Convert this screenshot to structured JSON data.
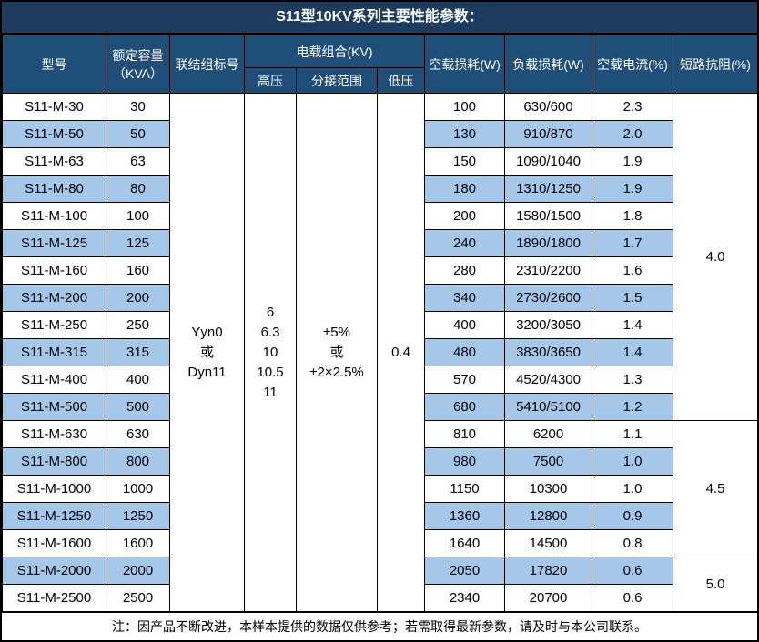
{
  "title": "S11型10KV系列主要性能参数：",
  "colors": {
    "title_bg": "#1E3C60",
    "header_bg": "#1F4E79",
    "row_alt_bg": "#A5C8EA",
    "border": "#000000"
  },
  "table": {
    "headers": {
      "model": "型号",
      "capacity_line1": "额定容量",
      "capacity_line2": "（KVA）",
      "connection": "联结组标号",
      "voltage_group": "电载组合(KV)",
      "high_voltage": "高压",
      "tap_range": "分接范围",
      "low_voltage": "低压",
      "no_load_loss": "空载损耗(W)",
      "load_loss": "负载损耗(W)",
      "no_load_current": "空载电流(%)",
      "impedance": "短路抗阻(%)"
    },
    "merged": {
      "connection": [
        "Yyn0",
        "或",
        "Dyn11"
      ],
      "high_voltage": [
        "6",
        "6.3",
        "10",
        "10.5",
        "11"
      ],
      "tap_range": [
        "±5%",
        "或",
        "±2×2.5%"
      ],
      "low_voltage": "0.4"
    },
    "rows": [
      {
        "model": "S11-M-30",
        "capacity": "30",
        "no_load_loss": "100",
        "load_loss": "630/600",
        "no_load_current": "2.3"
      },
      {
        "model": "S11-M-50",
        "capacity": "50",
        "no_load_loss": "130",
        "load_loss": "910/870",
        "no_load_current": "2.0"
      },
      {
        "model": "S11-M-63",
        "capacity": "63",
        "no_load_loss": "150",
        "load_loss": "1090/1040",
        "no_load_current": "1.9"
      },
      {
        "model": "S11-M-80",
        "capacity": "80",
        "no_load_loss": "180",
        "load_loss": "1310/1250",
        "no_load_current": "1.9"
      },
      {
        "model": "S11-M-100",
        "capacity": "100",
        "no_load_loss": "200",
        "load_loss": "1580/1500",
        "no_load_current": "1.8"
      },
      {
        "model": "S11-M-125",
        "capacity": "125",
        "no_load_loss": "240",
        "load_loss": "1890/1800",
        "no_load_current": "1.7"
      },
      {
        "model": "S11-M-160",
        "capacity": "160",
        "no_load_loss": "280",
        "load_loss": "2310/2200",
        "no_load_current": "1.6"
      },
      {
        "model": "S11-M-200",
        "capacity": "200",
        "no_load_loss": "340",
        "load_loss": "2730/2600",
        "no_load_current": "1.5"
      },
      {
        "model": "S11-M-250",
        "capacity": "250",
        "no_load_loss": "400",
        "load_loss": "3200/3050",
        "no_load_current": "1.4"
      },
      {
        "model": "S11-M-315",
        "capacity": "315",
        "no_load_loss": "480",
        "load_loss": "3830/3650",
        "no_load_current": "1.4"
      },
      {
        "model": "S11-M-400",
        "capacity": "400",
        "no_load_loss": "570",
        "load_loss": "4520/4300",
        "no_load_current": "1.3"
      },
      {
        "model": "S11-M-500",
        "capacity": "500",
        "no_load_loss": "680",
        "load_loss": "5410/5100",
        "no_load_current": "1.2"
      },
      {
        "model": "S11-M-630",
        "capacity": "630",
        "no_load_loss": "810",
        "load_loss": "6200",
        "no_load_current": "1.1"
      },
      {
        "model": "S11-M-800",
        "capacity": "800",
        "no_load_loss": "980",
        "load_loss": "7500",
        "no_load_current": "1.0"
      },
      {
        "model": "S11-M-1000",
        "capacity": "1000",
        "no_load_loss": "1150",
        "load_loss": "10300",
        "no_load_current": "1.0"
      },
      {
        "model": "S11-M-1250",
        "capacity": "1250",
        "no_load_loss": "1360",
        "load_loss": "12800",
        "no_load_current": "0.9"
      },
      {
        "model": "S11-M-1600",
        "capacity": "1600",
        "no_load_loss": "1640",
        "load_loss": "14500",
        "no_load_current": "0.8"
      },
      {
        "model": "S11-M-2000",
        "capacity": "2000",
        "no_load_loss": "2050",
        "load_loss": "17820",
        "no_load_current": "0.6"
      },
      {
        "model": "S11-M-2500",
        "capacity": "2500",
        "no_load_loss": "2340",
        "load_loss": "20700",
        "no_load_current": "0.6"
      }
    ],
    "impedance_groups": [
      {
        "value": "4.0",
        "rows": 12
      },
      {
        "value": "4.5",
        "rows": 5
      },
      {
        "value": "5.0",
        "rows": 2
      }
    ]
  },
  "footer_note": "注：因产品不断改进，本样本提供的数据仅供参考；若需取得最新参数，请及时与本公司联系。"
}
